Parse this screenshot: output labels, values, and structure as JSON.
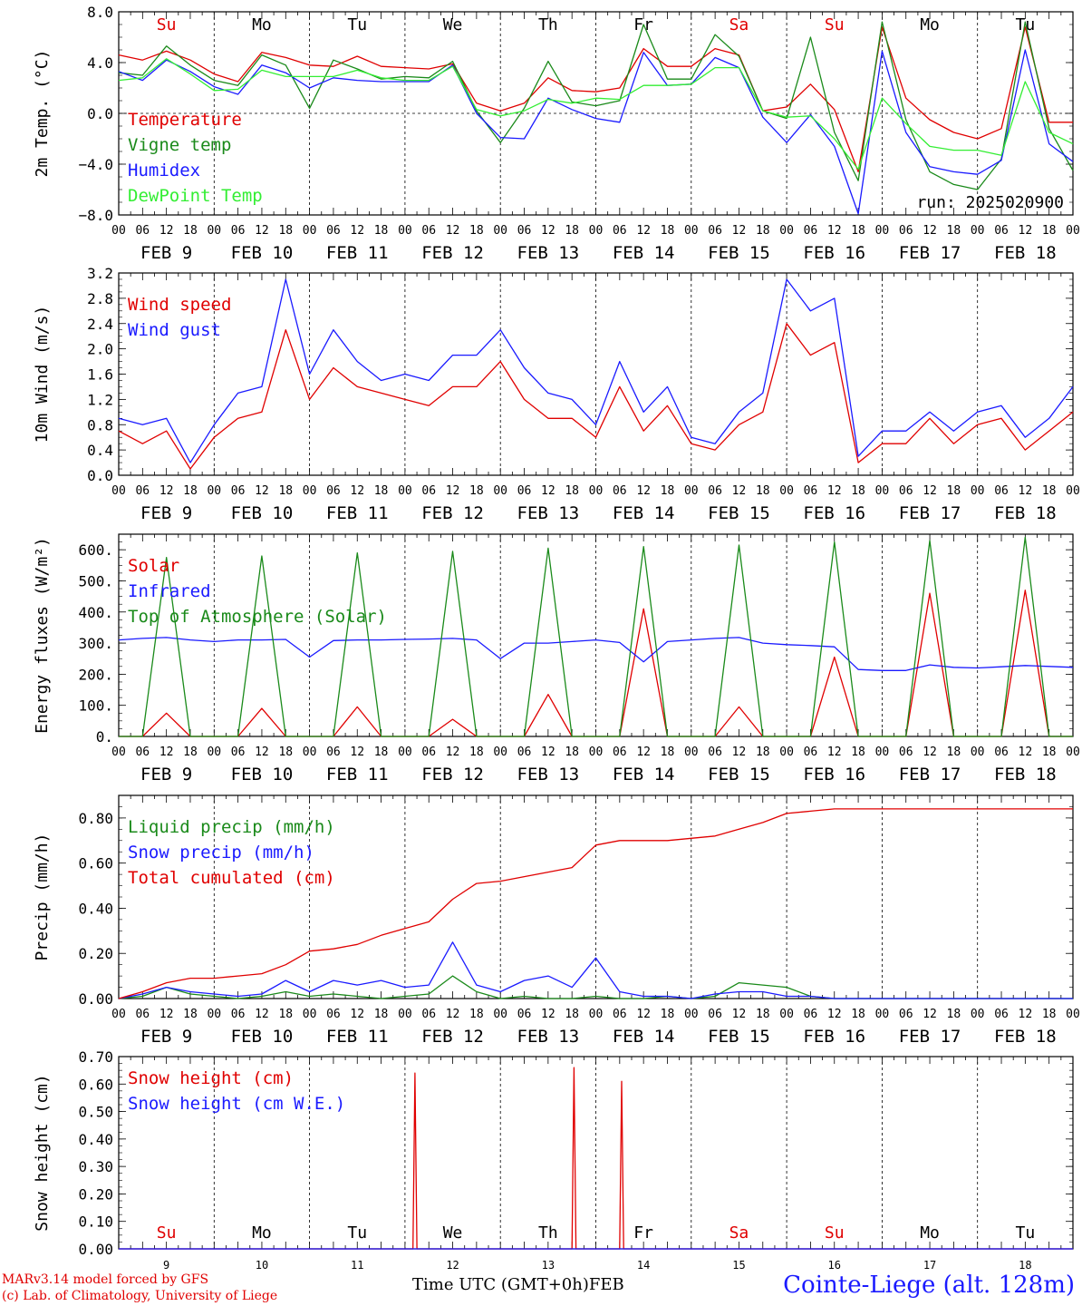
{
  "footer": {
    "credit_line1": "MARv3.14 model forced by GFS",
    "credit_line2": "(c) Lab. of Climatology, University of Liege",
    "xaxis_label": "Time UTC (GMT+0h)",
    "month": "FEB",
    "station": "Cointe-Liege (alt. 128m)"
  },
  "colors": {
    "red": "#e00000",
    "green": "#1a8a1a",
    "blue": "#1a1aff",
    "lightgreen": "#33ee33",
    "black": "#000000"
  },
  "chart_data": [
    {
      "id": "temp",
      "type": "line",
      "ylabel": "2m Temp. (°C)",
      "ylim": [
        -8,
        8
      ],
      "yticks": [
        "8.0",
        "4.0",
        "0.0",
        "−4.0",
        "−8.0"
      ],
      "ytick_values": [
        8,
        4,
        0,
        -4,
        -8
      ],
      "zero_line": true,
      "day_names": [
        "Su",
        "Mo",
        "Tu",
        "We",
        "Th",
        "Fr",
        "Sa",
        "Su",
        "Mo",
        "Tu"
      ],
      "day_name_colors": [
        "red",
        "black",
        "black",
        "black",
        "black",
        "black",
        "red",
        "red",
        "black",
        "black"
      ],
      "run_label": "run: 2025020900",
      "x_hours": [
        0,
        6,
        12,
        18,
        24,
        30,
        36,
        42,
        48,
        54,
        60,
        66,
        72,
        78,
        84,
        90,
        96,
        102,
        108,
        114,
        120,
        126,
        132,
        138,
        144,
        150,
        156,
        162,
        168,
        174,
        180,
        186,
        192,
        198,
        204,
        210,
        216,
        222,
        228,
        234,
        240
      ],
      "series": [
        {
          "name": "Temperature",
          "color": "red",
          "values": [
            4.6,
            4.2,
            4.9,
            4.2,
            3.1,
            2.5,
            4.8,
            4.4,
            3.8,
            3.7,
            4.5,
            3.7,
            3.6,
            3.5,
            3.9,
            0.8,
            0.2,
            0.8,
            2.8,
            1.8,
            1.7,
            2.0,
            5.1,
            3.7,
            3.7,
            5.1,
            4.6,
            0.2,
            0.5,
            2.3,
            0.3,
            -4.6,
            6.8,
            1.2,
            -0.5,
            -1.5,
            -2.0,
            -1.2,
            6.8,
            -0.7,
            -0.7
          ]
        },
        {
          "name": "Vigne temp",
          "color": "green",
          "values": [
            3.2,
            3.0,
            5.3,
            3.8,
            2.6,
            2.2,
            4.6,
            3.8,
            0.4,
            4.2,
            3.5,
            2.7,
            2.9,
            2.8,
            4.1,
            0.2,
            -2.3,
            0.4,
            4.1,
            0.9,
            0.6,
            1.0,
            7.0,
            2.7,
            2.7,
            6.2,
            4.5,
            0.2,
            -0.4,
            6.0,
            -1.5,
            -5.3,
            7.2,
            -0.5,
            -4.6,
            -5.6,
            -6.0,
            -3.6,
            7.2,
            -1.2,
            -4.5
          ]
        },
        {
          "name": "Humidex",
          "color": "blue",
          "values": [
            3.3,
            2.6,
            4.2,
            3.3,
            2.1,
            1.5,
            3.8,
            3.2,
            2.0,
            2.8,
            2.6,
            2.5,
            2.5,
            2.5,
            3.8,
            0.0,
            -1.9,
            -2.0,
            1.2,
            0.3,
            -0.4,
            -0.7,
            4.8,
            2.2,
            2.3,
            4.4,
            3.6,
            -0.3,
            -2.3,
            -0.1,
            -2.6,
            -7.9,
            4.9,
            -1.5,
            -4.2,
            -4.6,
            -4.8,
            -3.7,
            5.0,
            -2.4,
            -3.8
          ]
        },
        {
          "name": "DewPoint Temp",
          "color": "lightgreen",
          "values": [
            2.6,
            2.8,
            4.3,
            3.1,
            1.8,
            1.9,
            3.4,
            2.9,
            2.9,
            2.9,
            3.4,
            2.8,
            2.6,
            2.6,
            3.7,
            0.3,
            -0.2,
            0.2,
            1.1,
            0.8,
            1.2,
            1.1,
            2.2,
            2.2,
            2.3,
            3.6,
            3.6,
            0.2,
            -0.3,
            -0.2,
            -2.0,
            -4.4,
            1.2,
            -0.8,
            -2.6,
            -2.9,
            -2.9,
            -3.3,
            2.5,
            -1.5,
            -2.4
          ]
        }
      ]
    },
    {
      "id": "wind",
      "type": "line",
      "ylabel": "10m Wind (m/s)",
      "ylim": [
        0,
        3.2
      ],
      "yticks": [
        "3.2",
        "2.8",
        "2.4",
        "2.0",
        "1.6",
        "1.2",
        "0.8",
        "0.4",
        "0.0"
      ],
      "ytick_values": [
        3.2,
        2.8,
        2.4,
        2.0,
        1.6,
        1.2,
        0.8,
        0.4,
        0.0
      ],
      "x_hours": [
        0,
        6,
        12,
        18,
        24,
        30,
        36,
        42,
        48,
        54,
        60,
        66,
        72,
        78,
        84,
        90,
        96,
        102,
        108,
        114,
        120,
        126,
        132,
        138,
        144,
        150,
        156,
        162,
        168,
        174,
        180,
        186,
        192,
        198,
        204,
        210,
        216,
        222,
        228,
        234,
        240
      ],
      "series": [
        {
          "name": "Wind speed",
          "color": "red",
          "values": [
            0.7,
            0.5,
            0.7,
            0.1,
            0.6,
            0.9,
            1.0,
            2.3,
            1.2,
            1.7,
            1.4,
            1.3,
            1.2,
            1.1,
            1.4,
            1.4,
            1.8,
            1.2,
            0.9,
            0.9,
            0.6,
            1.4,
            0.7,
            1.1,
            0.5,
            0.4,
            0.8,
            1.0,
            2.4,
            1.9,
            2.1,
            0.2,
            0.5,
            0.5,
            0.9,
            0.5,
            0.8,
            0.9,
            0.4,
            0.7,
            1.0
          ]
        },
        {
          "name": "Wind gust",
          "color": "blue",
          "values": [
            0.9,
            0.8,
            0.9,
            0.2,
            0.8,
            1.3,
            1.4,
            3.1,
            1.6,
            2.3,
            1.8,
            1.5,
            1.6,
            1.5,
            1.9,
            1.9,
            2.3,
            1.7,
            1.3,
            1.2,
            0.8,
            1.8,
            1.0,
            1.4,
            0.6,
            0.5,
            1.0,
            1.3,
            3.1,
            2.6,
            2.8,
            0.3,
            0.7,
            0.7,
            1.0,
            0.7,
            1.0,
            1.1,
            0.6,
            0.9,
            1.4
          ]
        }
      ]
    },
    {
      "id": "energy",
      "type": "line",
      "ylabel": "Energy fluxes (W/m²)",
      "ylim": [
        0,
        650
      ],
      "yticks": [
        "600.",
        "500.",
        "400.",
        "300.",
        "200.",
        "100.",
        "0."
      ],
      "ytick_values": [
        600,
        500,
        400,
        300,
        200,
        100,
        0
      ],
      "x_hours": [
        0,
        6,
        12,
        18,
        24,
        30,
        36,
        42,
        48,
        54,
        60,
        66,
        72,
        78,
        84,
        90,
        96,
        102,
        108,
        114,
        120,
        126,
        132,
        138,
        144,
        150,
        156,
        162,
        168,
        174,
        180,
        186,
        192,
        198,
        204,
        210,
        216,
        222,
        228,
        234,
        240
      ],
      "series": [
        {
          "name": "Solar",
          "color": "red",
          "values": [
            0,
            0,
            75,
            0,
            0,
            0,
            90,
            0,
            0,
            0,
            95,
            0,
            0,
            0,
            55,
            0,
            0,
            0,
            135,
            0,
            0,
            0,
            410,
            0,
            0,
            0,
            95,
            0,
            0,
            0,
            255,
            0,
            0,
            0,
            460,
            0,
            0,
            0,
            470,
            0,
            0
          ]
        },
        {
          "name": "Infrared",
          "color": "blue",
          "values": [
            310,
            315,
            318,
            310,
            305,
            310,
            310,
            312,
            255,
            308,
            310,
            310,
            312,
            313,
            315,
            310,
            250,
            300,
            300,
            305,
            310,
            302,
            240,
            305,
            310,
            315,
            318,
            300,
            295,
            292,
            288,
            215,
            212,
            212,
            230,
            222,
            220,
            224,
            228,
            225,
            222
          ]
        },
        {
          "name": "Top of Atmosphere (Solar)",
          "color": "green",
          "values": [
            0,
            0,
            575,
            0,
            0,
            0,
            580,
            0,
            0,
            0,
            590,
            0,
            0,
            0,
            595,
            0,
            0,
            0,
            605,
            0,
            0,
            0,
            610,
            0,
            0,
            0,
            615,
            0,
            0,
            0,
            625,
            0,
            0,
            0,
            630,
            0,
            0,
            0,
            640,
            0,
            0
          ]
        }
      ]
    },
    {
      "id": "precip",
      "type": "line",
      "ylabel": "Precip (mm/h)",
      "ylim": [
        0,
        0.9
      ],
      "yticks": [
        "0.80",
        "0.60",
        "0.40",
        "0.20",
        "0.00"
      ],
      "ytick_values": [
        0.8,
        0.6,
        0.4,
        0.2,
        0.0
      ],
      "x_hours": [
        0,
        6,
        12,
        18,
        24,
        30,
        36,
        42,
        48,
        54,
        60,
        66,
        72,
        78,
        84,
        90,
        96,
        102,
        108,
        114,
        120,
        126,
        132,
        138,
        144,
        150,
        156,
        162,
        168,
        174,
        180,
        186,
        192,
        198,
        204,
        210,
        216,
        222,
        228,
        234,
        240
      ],
      "series": [
        {
          "name": "Liquid precip (mm/h)",
          "color": "green",
          "values": [
            0,
            0.01,
            0.05,
            0.02,
            0.01,
            0.0,
            0.01,
            0.03,
            0.01,
            0.02,
            0.01,
            0.0,
            0.01,
            0.02,
            0.1,
            0.03,
            0.0,
            0.01,
            0.0,
            0.0,
            0.01,
            0.0,
            0.0,
            0.01,
            0.0,
            0.01,
            0.07,
            0.06,
            0.05,
            0.01,
            0.0,
            0,
            0,
            0,
            0,
            0,
            0,
            0,
            0,
            0,
            0
          ]
        },
        {
          "name": "Snow precip (mm/h)",
          "color": "blue",
          "values": [
            0,
            0.02,
            0.05,
            0.03,
            0.02,
            0.01,
            0.02,
            0.08,
            0.03,
            0.08,
            0.06,
            0.08,
            0.05,
            0.06,
            0.25,
            0.06,
            0.03,
            0.08,
            0.1,
            0.05,
            0.18,
            0.03,
            0.01,
            0.01,
            0.0,
            0.02,
            0.03,
            0.03,
            0.01,
            0.01,
            0.0,
            0,
            0,
            0,
            0,
            0,
            0,
            0,
            0,
            0,
            0
          ]
        },
        {
          "name": "Total cumulated (cm)",
          "color": "red",
          "values": [
            0,
            0.03,
            0.07,
            0.09,
            0.09,
            0.1,
            0.11,
            0.15,
            0.21,
            0.22,
            0.24,
            0.28,
            0.31,
            0.34,
            0.44,
            0.51,
            0.52,
            0.54,
            0.56,
            0.58,
            0.68,
            0.7,
            0.7,
            0.7,
            0.71,
            0.72,
            0.75,
            0.78,
            0.82,
            0.83,
            0.84,
            0.84,
            0.84,
            0.84,
            0.84,
            0.84,
            0.84,
            0.84,
            0.84,
            0.84,
            0.84
          ]
        }
      ]
    },
    {
      "id": "snow",
      "type": "line",
      "ylabel": "Snow height (cm)",
      "ylim": [
        0,
        0.7
      ],
      "yticks": [
        "0.70",
        "0.60",
        "0.50",
        "0.40",
        "0.30",
        "0.20",
        "0.10",
        "0.00"
      ],
      "ytick_values": [
        0.7,
        0.6,
        0.5,
        0.4,
        0.3,
        0.2,
        0.1,
        0.0
      ],
      "x_day_numbers": [
        "9",
        "10",
        "11",
        "12",
        "13",
        "14",
        "15",
        "16",
        "17",
        "18"
      ],
      "series": [
        {
          "name": "Snow height (cm)",
          "color": "red",
          "points": [
            [
              0,
              0
            ],
            [
              74,
              0
            ],
            [
              74.5,
              0.64
            ],
            [
              75,
              0
            ],
            [
              114,
              0
            ],
            [
              114.5,
              0.66
            ],
            [
              115,
              0
            ],
            [
              126,
              0
            ],
            [
              126.5,
              0.61
            ],
            [
              127,
              0
            ],
            [
              240,
              0
            ]
          ]
        },
        {
          "name": "Snow height (cm W.E.)",
          "color": "blue",
          "points": [
            [
              0,
              0
            ],
            [
              240,
              0
            ]
          ]
        }
      ]
    }
  ],
  "date_labels": [
    "FEB  9",
    "FEB 10",
    "FEB 11",
    "FEB 12",
    "FEB 13",
    "FEB 14",
    "FEB 15",
    "FEB 16",
    "FEB 17",
    "FEB 18"
  ],
  "hour_labels": [
    "00",
    "06",
    "12",
    "18"
  ],
  "final_hour_label": "00"
}
